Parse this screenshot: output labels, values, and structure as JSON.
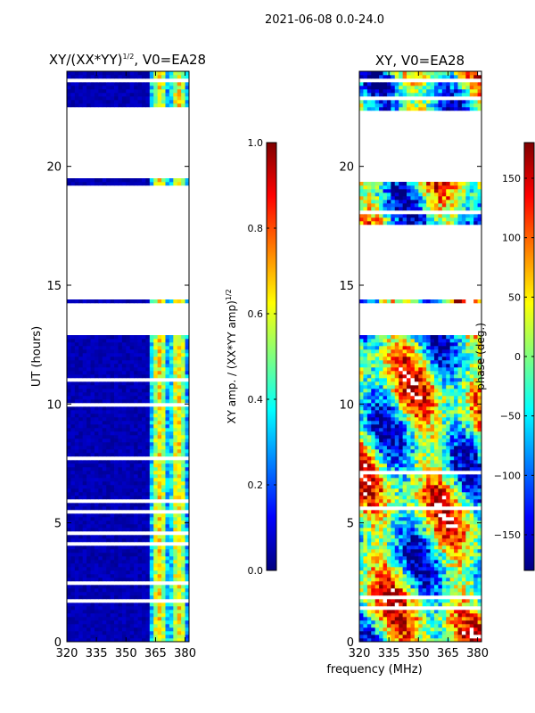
{
  "suptitle": "2021-06-08 0.0-24.0",
  "chart_data": [
    {
      "type": "heatmap",
      "title": "XY/(XX*YY)",
      "title_superscript": "1/2",
      "title_suffix": ", V0=EA28",
      "xlabel": "",
      "ylabel": "UT (hours)",
      "xlim": [
        320,
        382
      ],
      "ylim": [
        0,
        24
      ],
      "xticks": [
        "320",
        "335",
        "350",
        "365",
        "380"
      ],
      "xtick_values": [
        320,
        335,
        350,
        365,
        380
      ],
      "yticks": [
        "0",
        "5",
        "10",
        "15",
        "20"
      ],
      "ytick_values": [
        0,
        5,
        10,
        15,
        20
      ],
      "data_gaps_hours": [
        [
          12.85,
          14.3
        ],
        [
          14.45,
          19.2
        ],
        [
          19.5,
          22.4
        ]
      ],
      "colorbar": {
        "label": "XY amp. / (XX*YY amp)",
        "label_superscript": "1/2",
        "range": [
          0.0,
          1.0
        ],
        "ticks": [
          "0.0",
          "0.2",
          "0.4",
          "0.6",
          "0.8",
          "1.0"
        ],
        "tick_values": [
          0.0,
          0.2,
          0.4,
          0.6,
          0.8,
          1.0
        ],
        "colormap": "jet"
      }
    },
    {
      "type": "heatmap",
      "title": "XY, V0=EA28",
      "xlabel": "frequency (MHz)",
      "ylabel": "",
      "xlim": [
        320,
        382
      ],
      "ylim": [
        0,
        24
      ],
      "xticks": [
        "320",
        "335",
        "350",
        "365",
        "380"
      ],
      "xtick_values": [
        320,
        335,
        350,
        365,
        380
      ],
      "yticks": [
        "0",
        "5",
        "10",
        "15",
        "20"
      ],
      "ytick_values": [
        0,
        5,
        10,
        15,
        20
      ],
      "data_gaps_hours": [
        [
          12.85,
          14.3
        ],
        [
          14.45,
          17.6
        ],
        [
          19.3,
          22.4
        ]
      ],
      "colorbar": {
        "label": "phase (deg.)",
        "range": [
          -180,
          180
        ],
        "ticks": [
          "−150",
          "−100",
          "−50",
          "0",
          "50",
          "100",
          "150"
        ],
        "tick_values": [
          -150,
          -100,
          -50,
          0,
          50,
          100,
          150
        ],
        "colormap": "jet"
      }
    }
  ],
  "colormap_stops": [
    "#00007f",
    "#0000ff",
    "#007fff",
    "#00ffff",
    "#7fff7f",
    "#ffff00",
    "#ff7f00",
    "#ff0000",
    "#7f0000"
  ]
}
